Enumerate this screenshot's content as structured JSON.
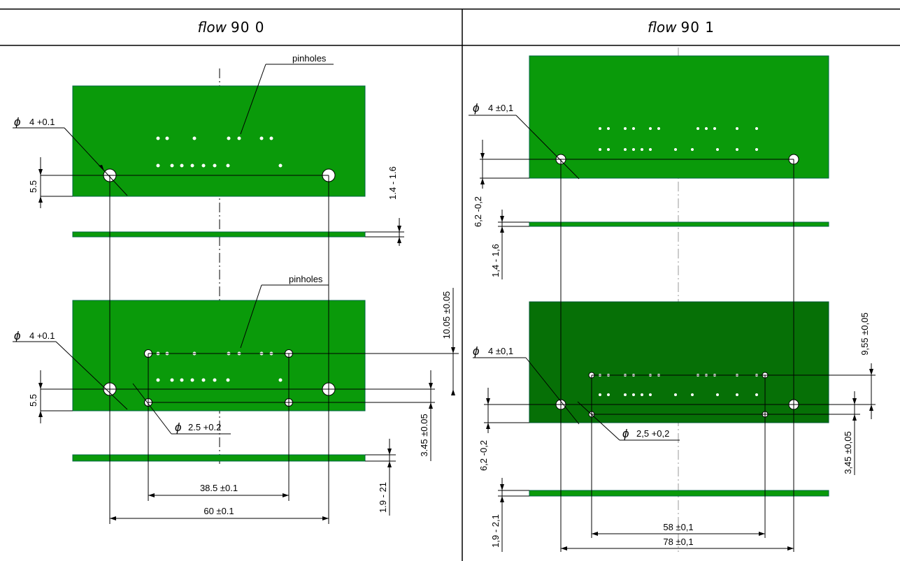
{
  "panels": [
    {
      "title_italic": "flow",
      "title_rest": "90 0",
      "labels": {
        "pinholes_top": "pinholes",
        "pinholes_bottom": "pinholes",
        "hole_dia_top": "4 +0.1",
        "hole_dia_bottom": "4 +0.1",
        "edge_top": "5.5",
        "edge_bottom": "5.5",
        "thickness_top": "1.4 - 1.6",
        "thickness_bottom": "1.9 - 21",
        "pin_offset_v": "10.05 ±0.05",
        "pin_offset_h": "3.45 ±0.05",
        "pin_dia": "2.5 +0.2",
        "pin_span": "38.5 ±0.1",
        "hole_span": "60 ±0.1"
      }
    },
    {
      "title_italic": "flow",
      "title_rest": "90 1",
      "labels": {
        "hole_dia_top": "4 ±0,1",
        "hole_dia_bottom": "4 ±0,1",
        "edge_top": "6,2 -0,2",
        "edge_bottom": "6,2 -0,2",
        "thickness_top": "1,4 - 1,6",
        "thickness_bottom": "1,9 - 2,1",
        "pin_offset_v": "9,55 ±0,05",
        "pin_offset_h": "3,45 ±0,05",
        "pin_dia": "2,5 +0,2",
        "pin_span": "58 ±0,1",
        "hole_span": "78 ±0,1"
      }
    }
  ],
  "symbols": {
    "diameter": "ϕ"
  },
  "colors": {
    "board": "#0a9a0a",
    "board_dark": "#067006",
    "line": "#000000"
  }
}
